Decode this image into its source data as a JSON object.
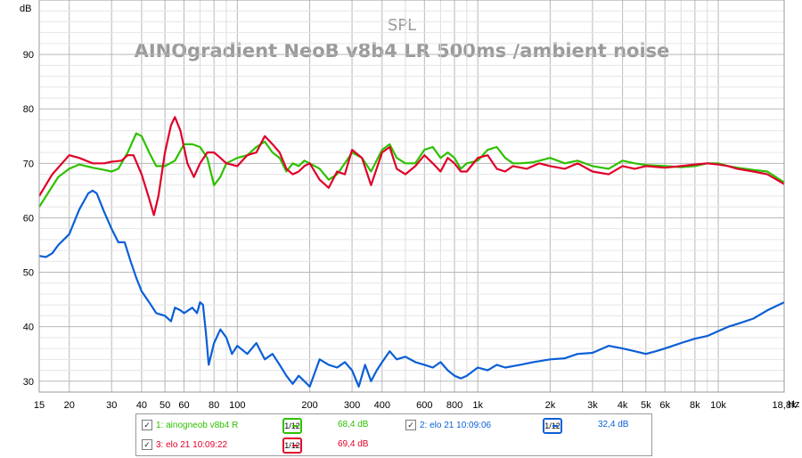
{
  "chart_data": {
    "type": "line",
    "title": "SPL",
    "subtitle": "AINOgradient NeoB v8b4 LR 500ms /ambient noise",
    "ylabel": "dB",
    "xunit": "Hz",
    "xscale": "log",
    "xlim": [
      15,
      18800
    ],
    "ylim": [
      28,
      100
    ],
    "grid": true,
    "x_ticks": [
      {
        "value": 15,
        "label": "15"
      },
      {
        "value": 20,
        "label": "20"
      },
      {
        "value": 30,
        "label": "30"
      },
      {
        "value": 40,
        "label": "40"
      },
      {
        "value": 50,
        "label": "50"
      },
      {
        "value": 60,
        "label": "60"
      },
      {
        "value": 80,
        "label": "80"
      },
      {
        "value": 100,
        "label": "100"
      },
      {
        "value": 200,
        "label": "200"
      },
      {
        "value": 300,
        "label": "300"
      },
      {
        "value": 400,
        "label": "400"
      },
      {
        "value": 600,
        "label": "600"
      },
      {
        "value": 800,
        "label": "800"
      },
      {
        "value": 1000,
        "label": "1k"
      },
      {
        "value": 2000,
        "label": "2k"
      },
      {
        "value": 3000,
        "label": "3k"
      },
      {
        "value": 4000,
        "label": "4k"
      },
      {
        "value": 5000,
        "label": "5k"
      },
      {
        "value": 6000,
        "label": "6k"
      },
      {
        "value": 8000,
        "label": "8k"
      },
      {
        "value": 10000,
        "label": "10k"
      },
      {
        "value": 18800,
        "label": "18,8k"
      }
    ],
    "y_ticks": [
      30,
      40,
      50,
      60,
      70,
      80,
      90
    ],
    "series": [
      {
        "name": "1: ainogneob v8b4 R",
        "color": "#2ec000",
        "smoothing": "1/12",
        "level": "68,4 dB",
        "points": [
          [
            15,
            62
          ],
          [
            18,
            67.5
          ],
          [
            20,
            69
          ],
          [
            22,
            69.8
          ],
          [
            25,
            69.2
          ],
          [
            28,
            68.8
          ],
          [
            30,
            68.5
          ],
          [
            32,
            69
          ],
          [
            35,
            72
          ],
          [
            38,
            75.5
          ],
          [
            40,
            75
          ],
          [
            43,
            72
          ],
          [
            46,
            69.5
          ],
          [
            50,
            69.5
          ],
          [
            55,
            70.5
          ],
          [
            60,
            73.5
          ],
          [
            65,
            73.5
          ],
          [
            70,
            73
          ],
          [
            75,
            71
          ],
          [
            80,
            66
          ],
          [
            85,
            67.5
          ],
          [
            90,
            70
          ],
          [
            100,
            71
          ],
          [
            110,
            71.5
          ],
          [
            120,
            73
          ],
          [
            130,
            74
          ],
          [
            140,
            72
          ],
          [
            150,
            71
          ],
          [
            160,
            68.5
          ],
          [
            170,
            70
          ],
          [
            180,
            69.5
          ],
          [
            190,
            70.5
          ],
          [
            200,
            70
          ],
          [
            220,
            69
          ],
          [
            240,
            67
          ],
          [
            260,
            68
          ],
          [
            280,
            70
          ],
          [
            300,
            72
          ],
          [
            330,
            71
          ],
          [
            360,
            68.5
          ],
          [
            400,
            72.5
          ],
          [
            430,
            73.5
          ],
          [
            460,
            71
          ],
          [
            500,
            70
          ],
          [
            550,
            70
          ],
          [
            600,
            72.5
          ],
          [
            650,
            73
          ],
          [
            700,
            71
          ],
          [
            750,
            72
          ],
          [
            800,
            71
          ],
          [
            850,
            69
          ],
          [
            900,
            70
          ],
          [
            1000,
            70.5
          ],
          [
            1100,
            72.5
          ],
          [
            1200,
            73
          ],
          [
            1300,
            71
          ],
          [
            1400,
            70
          ],
          [
            1500,
            70
          ],
          [
            1700,
            70.2
          ],
          [
            2000,
            71
          ],
          [
            2300,
            70
          ],
          [
            2600,
            70.5
          ],
          [
            3000,
            69.5
          ],
          [
            3500,
            69
          ],
          [
            4000,
            70.5
          ],
          [
            4500,
            70
          ],
          [
            5000,
            69.7
          ],
          [
            6000,
            69.5
          ],
          [
            7000,
            69.3
          ],
          [
            8000,
            69.5
          ],
          [
            9000,
            70
          ],
          [
            10000,
            70
          ],
          [
            11000,
            69.5
          ],
          [
            12000,
            69.2
          ],
          [
            14000,
            68.8
          ],
          [
            16000,
            68.5
          ],
          [
            18800,
            66.5
          ]
        ]
      },
      {
        "name": "2: elo 21 10:09:06",
        "color": "#0a5fd6",
        "smoothing": "1/12",
        "level": "32,4 dB",
        "points": [
          [
            15,
            53
          ],
          [
            16,
            52.8
          ],
          [
            17,
            53.5
          ],
          [
            18,
            55
          ],
          [
            20,
            57
          ],
          [
            22,
            61.5
          ],
          [
            24,
            64.5
          ],
          [
            25,
            65
          ],
          [
            26,
            64.5
          ],
          [
            28,
            61
          ],
          [
            30,
            58
          ],
          [
            32,
            55.5
          ],
          [
            34,
            55.5
          ],
          [
            36,
            52
          ],
          [
            38,
            49
          ],
          [
            40,
            46.5
          ],
          [
            43,
            44.5
          ],
          [
            46,
            42.5
          ],
          [
            50,
            42
          ],
          [
            53,
            41
          ],
          [
            55,
            43.5
          ],
          [
            58,
            43
          ],
          [
            60,
            42.5
          ],
          [
            65,
            43.5
          ],
          [
            68,
            42.5
          ],
          [
            70,
            44.5
          ],
          [
            72,
            44
          ],
          [
            74,
            39
          ],
          [
            76,
            33
          ],
          [
            80,
            37
          ],
          [
            85,
            39.5
          ],
          [
            90,
            38
          ],
          [
            95,
            35
          ],
          [
            100,
            36.5
          ],
          [
            110,
            35
          ],
          [
            120,
            37
          ],
          [
            130,
            34
          ],
          [
            140,
            35
          ],
          [
            150,
            33
          ],
          [
            160,
            31
          ],
          [
            170,
            29.5
          ],
          [
            180,
            31
          ],
          [
            190,
            30
          ],
          [
            200,
            29
          ],
          [
            220,
            34
          ],
          [
            240,
            33
          ],
          [
            260,
            32.5
          ],
          [
            280,
            33.5
          ],
          [
            300,
            32
          ],
          [
            320,
            29
          ],
          [
            340,
            33
          ],
          [
            360,
            30
          ],
          [
            380,
            32
          ],
          [
            400,
            33.5
          ],
          [
            430,
            35.5
          ],
          [
            460,
            34
          ],
          [
            500,
            34.5
          ],
          [
            550,
            33.5
          ],
          [
            600,
            33
          ],
          [
            650,
            32.5
          ],
          [
            700,
            33.5
          ],
          [
            750,
            32
          ],
          [
            800,
            31
          ],
          [
            850,
            30.5
          ],
          [
            900,
            31
          ],
          [
            1000,
            32.5
          ],
          [
            1100,
            32
          ],
          [
            1200,
            33
          ],
          [
            1300,
            32.5
          ],
          [
            1500,
            33
          ],
          [
            1700,
            33.5
          ],
          [
            2000,
            34
          ],
          [
            2300,
            34.2
          ],
          [
            2600,
            35
          ],
          [
            3000,
            35.2
          ],
          [
            3500,
            36.5
          ],
          [
            4000,
            36
          ],
          [
            4500,
            35.5
          ],
          [
            5000,
            35
          ],
          [
            5500,
            35.5
          ],
          [
            6000,
            36
          ],
          [
            7000,
            37
          ],
          [
            8000,
            37.8
          ],
          [
            9000,
            38.3
          ],
          [
            10000,
            39.2
          ],
          [
            11000,
            40
          ],
          [
            12000,
            40.5
          ],
          [
            14000,
            41.5
          ],
          [
            16000,
            43
          ],
          [
            18800,
            44.5
          ]
        ]
      },
      {
        "name": "3: elo 21 10:09:22",
        "color": "#e0002a",
        "smoothing": "1/12",
        "level": "69,4 dB",
        "points": [
          [
            15,
            64
          ],
          [
            17,
            68
          ],
          [
            20,
            71.5
          ],
          [
            22,
            71
          ],
          [
            25,
            70
          ],
          [
            28,
            70
          ],
          [
            30,
            70.3
          ],
          [
            33,
            70.5
          ],
          [
            35,
            71.5
          ],
          [
            37,
            71.5
          ],
          [
            40,
            68
          ],
          [
            43,
            63.5
          ],
          [
            45,
            60.5
          ],
          [
            47,
            64
          ],
          [
            50,
            72
          ],
          [
            53,
            77
          ],
          [
            55,
            78.5
          ],
          [
            58,
            76
          ],
          [
            62,
            70
          ],
          [
            66,
            67.5
          ],
          [
            70,
            70
          ],
          [
            75,
            72
          ],
          [
            80,
            72
          ],
          [
            85,
            71
          ],
          [
            90,
            70
          ],
          [
            100,
            69.5
          ],
          [
            110,
            71.5
          ],
          [
            120,
            72
          ],
          [
            130,
            75
          ],
          [
            140,
            73.5
          ],
          [
            150,
            72
          ],
          [
            160,
            69
          ],
          [
            170,
            68
          ],
          [
            180,
            68.5
          ],
          [
            190,
            69.5
          ],
          [
            200,
            70
          ],
          [
            220,
            67
          ],
          [
            240,
            65.5
          ],
          [
            260,
            68.5
          ],
          [
            280,
            68
          ],
          [
            300,
            72.5
          ],
          [
            330,
            71
          ],
          [
            360,
            66
          ],
          [
            400,
            72
          ],
          [
            430,
            73
          ],
          [
            460,
            69
          ],
          [
            500,
            68
          ],
          [
            550,
            69.5
          ],
          [
            600,
            71.5
          ],
          [
            650,
            70
          ],
          [
            700,
            68.5
          ],
          [
            750,
            71
          ],
          [
            800,
            70
          ],
          [
            850,
            68.5
          ],
          [
            900,
            68.5
          ],
          [
            1000,
            71
          ],
          [
            1100,
            71.5
          ],
          [
            1200,
            69
          ],
          [
            1300,
            68.5
          ],
          [
            1400,
            69.5
          ],
          [
            1600,
            69
          ],
          [
            1800,
            70
          ],
          [
            2000,
            69.5
          ],
          [
            2300,
            69
          ],
          [
            2600,
            70
          ],
          [
            3000,
            68.5
          ],
          [
            3500,
            68
          ],
          [
            4000,
            69.5
          ],
          [
            4500,
            69
          ],
          [
            5000,
            69.5
          ],
          [
            6000,
            69.2
          ],
          [
            7000,
            69.5
          ],
          [
            8000,
            69.8
          ],
          [
            9000,
            70
          ],
          [
            10000,
            69.8
          ],
          [
            11000,
            69.5
          ],
          [
            12000,
            69
          ],
          [
            14000,
            68.5
          ],
          [
            16000,
            68
          ],
          [
            18800,
            66.2
          ]
        ]
      }
    ]
  }
}
